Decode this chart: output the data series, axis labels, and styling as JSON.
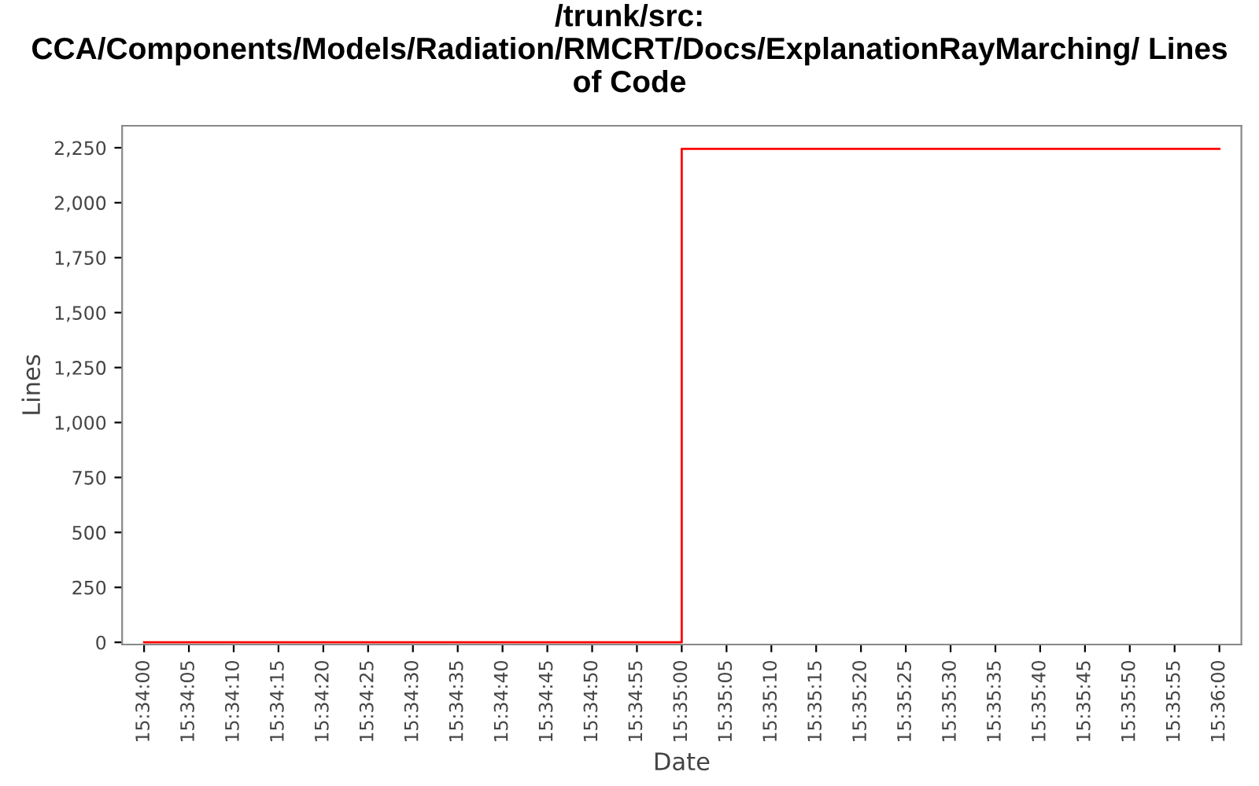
{
  "chart_data": {
    "type": "step",
    "title": "/trunk/src: CCA/Components/Models/Radiation/RMCRT/Docs/ExplanationRayMarching/ Lines of Code",
    "xlabel": "Date",
    "ylabel": "Lines",
    "x": [
      15.566667,
      15.583333,
      15.6
    ],
    "series": [
      {
        "color": "#ff0000",
        "values": [
          0,
          2245,
          2245
        ]
      }
    ],
    "xlim": [
      15.565986,
      15.600681
    ],
    "ylim": [
      -10,
      2350
    ],
    "xticks": [
      {
        "value": 15.566667,
        "label": "15:34:00"
      },
      {
        "value": 15.568056,
        "label": "15:34:05"
      },
      {
        "value": 15.569444,
        "label": "15:34:10"
      },
      {
        "value": 15.570833,
        "label": "15:34:15"
      },
      {
        "value": 15.572222,
        "label": "15:34:20"
      },
      {
        "value": 15.573611,
        "label": "15:34:25"
      },
      {
        "value": 15.575,
        "label": "15:34:30"
      },
      {
        "value": 15.576389,
        "label": "15:34:35"
      },
      {
        "value": 15.577778,
        "label": "15:34:40"
      },
      {
        "value": 15.579167,
        "label": "15:34:45"
      },
      {
        "value": 15.580556,
        "label": "15:34:50"
      },
      {
        "value": 15.581944,
        "label": "15:34:55"
      },
      {
        "value": 15.583333,
        "label": "15:35:00"
      },
      {
        "value": 15.584722,
        "label": "15:35:05"
      },
      {
        "value": 15.586111,
        "label": "15:35:10"
      },
      {
        "value": 15.5875,
        "label": "15:35:15"
      },
      {
        "value": 15.588889,
        "label": "15:35:20"
      },
      {
        "value": 15.590278,
        "label": "15:35:25"
      },
      {
        "value": 15.591667,
        "label": "15:35:30"
      },
      {
        "value": 15.593056,
        "label": "15:35:35"
      },
      {
        "value": 15.594444,
        "label": "15:35:40"
      },
      {
        "value": 15.595833,
        "label": "15:35:45"
      },
      {
        "value": 15.597222,
        "label": "15:35:50"
      },
      {
        "value": 15.598611,
        "label": "15:35:55"
      },
      {
        "value": 15.6,
        "label": "15:36:00"
      }
    ],
    "yticks": [
      {
        "value": 0,
        "label": "0"
      },
      {
        "value": 250,
        "label": "250"
      },
      {
        "value": 500,
        "label": "500"
      },
      {
        "value": 750,
        "label": "750"
      },
      {
        "value": 1000,
        "label": "1,000"
      },
      {
        "value": 1250,
        "label": "1,250"
      },
      {
        "value": 1500,
        "label": "1,500"
      },
      {
        "value": 1750,
        "label": "1,750"
      },
      {
        "value": 2000,
        "label": "2,000"
      },
      {
        "value": 2250,
        "label": "2,250"
      }
    ],
    "grid": false
  }
}
